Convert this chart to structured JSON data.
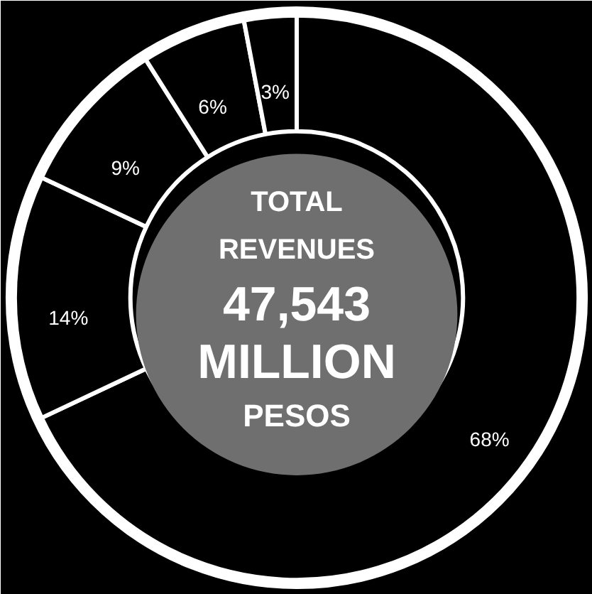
{
  "chart_data": {
    "type": "donut",
    "categories": [
      null,
      null,
      null,
      null,
      null
    ],
    "values": [
      68,
      14,
      9,
      6,
      3
    ],
    "colors": [
      "#000000",
      "#000000",
      "#000000",
      "#000000",
      "#000000"
    ],
    "value_labels": [
      "68%",
      "14%",
      "9%",
      "6%",
      "3%"
    ],
    "annotations": [
      "TOTAL",
      "REVENUES",
      "47,543",
      "MILLION",
      "PESOS"
    ]
  }
}
